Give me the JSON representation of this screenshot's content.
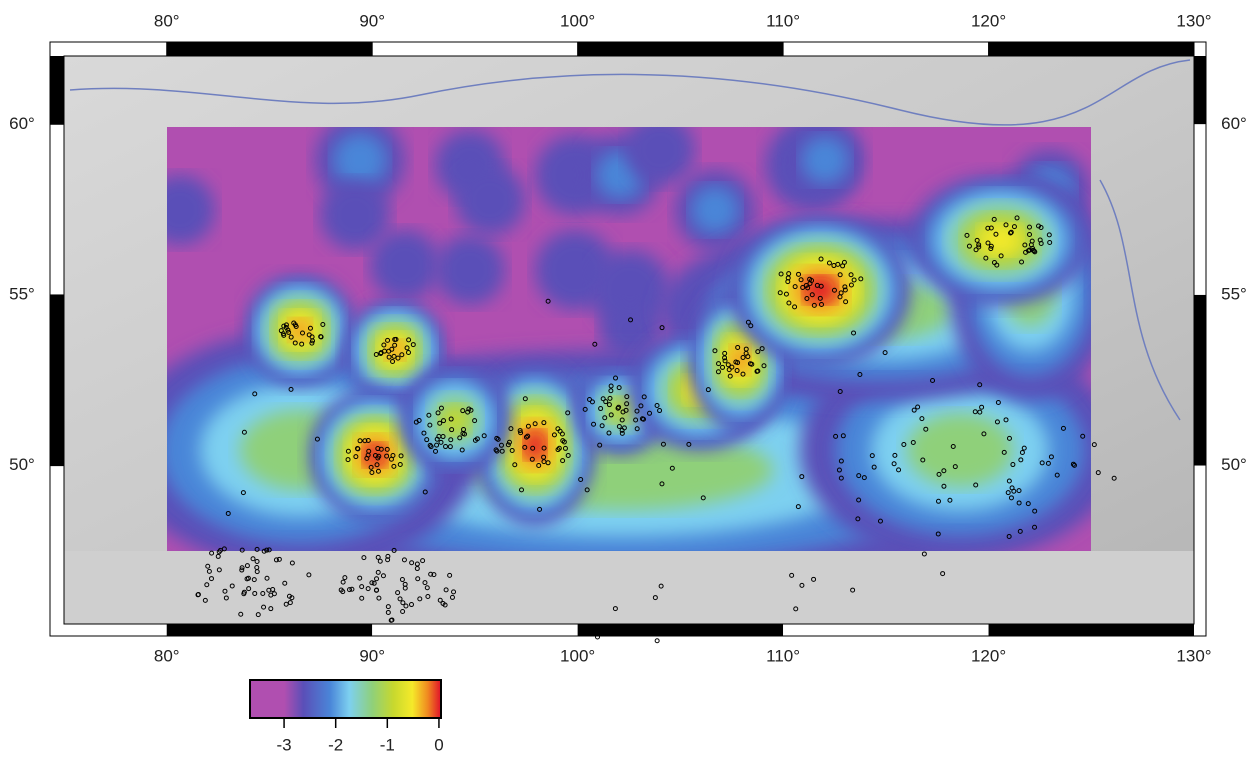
{
  "map": {
    "xlim": [
      75,
      130
    ],
    "ylim": [
      45.36,
      62
    ],
    "xticks": [
      {
        "value": 80,
        "label": "80°"
      },
      {
        "value": 90,
        "label": "90°"
      },
      {
        "value": 100,
        "label": "100°"
      },
      {
        "value": 110,
        "label": "110°"
      },
      {
        "value": 120,
        "label": "120°"
      },
      {
        "value": 130,
        "label": "130°"
      }
    ],
    "yticks": [
      {
        "value": 50,
        "label": "50°"
      },
      {
        "value": 55,
        "label": "55°"
      },
      {
        "value": 60,
        "label": "60°"
      }
    ],
    "colorbar": {
      "lim": [
        -3.66,
        0.04
      ],
      "ticks": [
        -3,
        -2,
        -1,
        0
      ]
    }
  }
}
